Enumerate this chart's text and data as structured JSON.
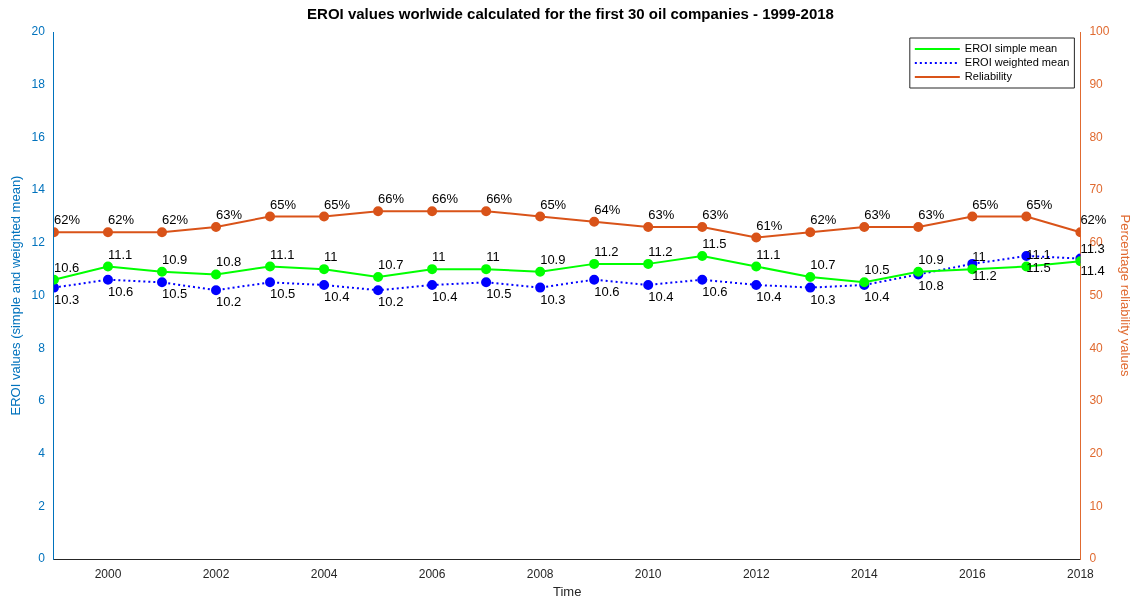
{
  "chart_data": {
    "type": "line",
    "title": "EROI values worlwide calculated for the first 30 oil companies - 1999-2018",
    "xlabel": "Time",
    "ylabel": "EROI values (simple and weighted mean)",
    "y2label": "Percentage reliability values",
    "x": [
      1999,
      2000,
      2001,
      2002,
      2003,
      2004,
      2005,
      2006,
      2007,
      2008,
      2009,
      2010,
      2011,
      2012,
      2013,
      2014,
      2015,
      2016,
      2017,
      2018
    ],
    "xlim": [
      1999,
      2018
    ],
    "xticks": [
      2000,
      2002,
      2004,
      2006,
      2008,
      2010,
      2012,
      2014,
      2016,
      2018
    ],
    "ylim": [
      0,
      20
    ],
    "yticks": [
      0,
      2,
      4,
      6,
      8,
      10,
      12,
      14,
      16,
      18,
      20
    ],
    "y2lim": [
      0,
      100
    ],
    "y2ticks": [
      0,
      10,
      20,
      30,
      40,
      50,
      60,
      70,
      80,
      90,
      100
    ],
    "grid": false,
    "legend": "top right",
    "marker": "circle",
    "series": [
      {
        "name": "EROI simple mean",
        "color": "#00ff00",
        "line_style": "solid",
        "values": [
          10.6,
          11.1,
          10.9,
          10.8,
          11.1,
          11,
          10.7,
          11,
          11,
          10.9,
          11.2,
          11.2,
          11.5,
          11.1,
          10.7,
          10.5,
          10.9,
          11,
          11.1,
          11.3
        ],
        "value_labels": [
          "10.6",
          "11.1",
          "10.9",
          "10.8",
          "11.1",
          "11",
          "10.7",
          "11",
          "11",
          "10.9",
          "11.2",
          "11.2",
          "11.5",
          "11.1",
          "10.7",
          "10.5",
          "10.9",
          "11",
          "11.1",
          "11.3"
        ]
      },
      {
        "name": "EROI weighted mean",
        "color": "#0000ff",
        "line_style": "dotted",
        "values": [
          10.3,
          10.6,
          10.5,
          10.2,
          10.5,
          10.4,
          10.2,
          10.4,
          10.5,
          10.3,
          10.6,
          10.4,
          10.6,
          10.4,
          10.3,
          10.4,
          10.8,
          11.2,
          11.5,
          11.4
        ],
        "value_labels": [
          "10.3",
          "10.6",
          "10.5",
          "10.2",
          "10.5",
          "10.4",
          "10.2",
          "10.4",
          "10.5",
          "10.3",
          "10.6",
          "10.4",
          "10.6",
          "10.4",
          "10.3",
          "10.4",
          "10.8",
          "11.2",
          "11.5",
          "11.4"
        ]
      },
      {
        "name": "Reliability",
        "color": "#d95319",
        "line_style": "solid",
        "axis": "y2",
        "values": [
          62,
          62,
          62,
          63,
          65,
          65,
          66,
          66,
          66,
          65,
          64,
          63,
          63,
          61,
          62,
          63,
          63,
          65,
          65,
          62
        ],
        "value_labels": [
          "62%",
          "62%",
          "62%",
          "63%",
          "65%",
          "65%",
          "66%",
          "66%",
          "66%",
          "65%",
          "64%",
          "63%",
          "63%",
          "61%",
          "62%",
          "63%",
          "63%",
          "65%",
          "65%",
          "62%"
        ]
      }
    ]
  }
}
